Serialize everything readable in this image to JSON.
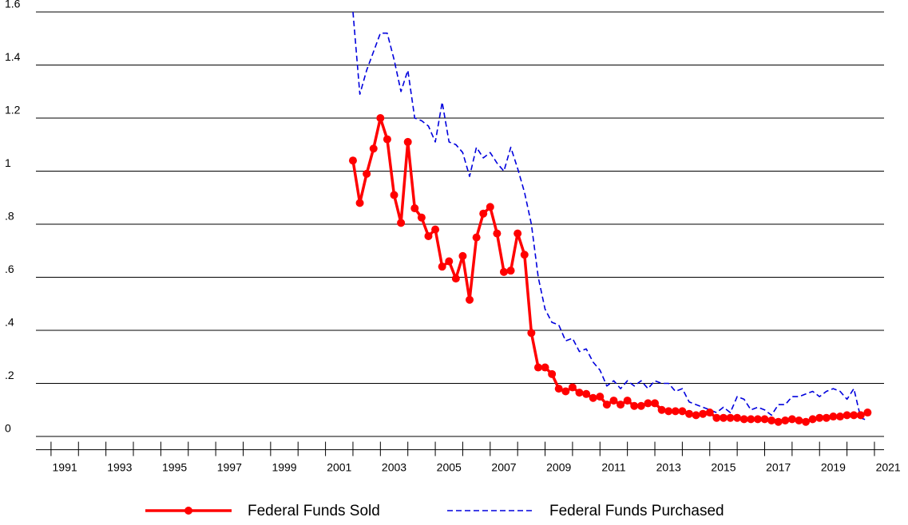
{
  "chart_data": {
    "type": "line",
    "x": [
      2002,
      2002.25,
      2002.5,
      2002.75,
      2003,
      2003.25,
      2003.5,
      2003.75,
      2004,
      2004.25,
      2004.5,
      2004.75,
      2005,
      2005.25,
      2005.5,
      2005.75,
      2006,
      2006.25,
      2006.5,
      2006.75,
      2007,
      2007.25,
      2007.5,
      2007.75,
      2008,
      2008.25,
      2008.5,
      2008.75,
      2009,
      2009.25,
      2009.5,
      2009.75,
      2010,
      2010.25,
      2010.5,
      2010.75,
      2011,
      2011.25,
      2011.5,
      2011.75,
      2012,
      2012.25,
      2012.5,
      2012.75,
      2013,
      2013.25,
      2013.5,
      2013.75,
      2014,
      2014.25,
      2014.5,
      2014.75,
      2015,
      2015.25,
      2015.5,
      2015.75,
      2016,
      2016.25,
      2016.5,
      2016.75,
      2017,
      2017.25,
      2017.5,
      2017.75,
      2018,
      2018.25,
      2018.5,
      2018.75,
      2019,
      2019.25,
      2019.5,
      2019.75,
      2020,
      2020.25,
      2020.5,
      2020.75
    ],
    "series": [
      {
        "name": "Federal Funds Sold",
        "color": "#ff0000",
        "marker": true,
        "values": [
          1.04,
          0.88,
          0.99,
          1.085,
          1.2,
          1.12,
          0.91,
          0.805,
          1.11,
          0.86,
          0.825,
          0.755,
          0.78,
          0.64,
          0.66,
          0.595,
          0.68,
          0.515,
          0.75,
          0.84,
          0.865,
          0.765,
          0.62,
          0.625,
          0.765,
          0.685,
          0.39,
          0.26,
          0.26,
          0.235,
          0.18,
          0.17,
          0.185,
          0.165,
          0.16,
          0.145,
          0.15,
          0.12,
          0.135,
          0.12,
          0.135,
          0.115,
          0.115,
          0.125,
          0.125,
          0.1,
          0.095,
          0.095,
          0.095,
          0.085,
          0.08,
          0.085,
          0.09,
          0.07,
          0.07,
          0.07,
          0.07,
          0.065,
          0.065,
          0.065,
          0.065,
          0.06,
          0.055,
          0.06,
          0.065,
          0.06,
          0.055,
          0.065,
          0.07,
          0.07,
          0.075,
          0.075,
          0.08,
          0.08,
          0.08,
          0.09
        ]
      },
      {
        "name": "Federal Funds Purchased",
        "color": "#0000dd",
        "dashed": true,
        "values": [
          1.6,
          1.29,
          1.38,
          1.45,
          1.52,
          1.52,
          1.42,
          1.3,
          1.38,
          1.2,
          1.19,
          1.17,
          1.11,
          1.26,
          1.11,
          1.1,
          1.07,
          0.98,
          1.09,
          1.05,
          1.07,
          1.03,
          1.0,
          1.09,
          1.01,
          0.92,
          0.8,
          0.6,
          0.48,
          0.43,
          0.42,
          0.36,
          0.37,
          0.32,
          0.33,
          0.28,
          0.25,
          0.19,
          0.21,
          0.18,
          0.21,
          0.19,
          0.21,
          0.18,
          0.21,
          0.2,
          0.2,
          0.17,
          0.18,
          0.13,
          0.12,
          0.11,
          0.1,
          0.09,
          0.11,
          0.09,
          0.15,
          0.14,
          0.1,
          0.11,
          0.1,
          0.08,
          0.12,
          0.12,
          0.15,
          0.15,
          0.16,
          0.17,
          0.15,
          0.17,
          0.18,
          0.17,
          0.14,
          0.18,
          0.07,
          0.06
        ]
      }
    ],
    "xlim": [
      1990.45,
      2021.35
    ],
    "xticks": [
      {
        "value": 1991.5,
        "label": "1991"
      },
      {
        "value": 1993.5,
        "label": "1993"
      },
      {
        "value": 1995.5,
        "label": "1995"
      },
      {
        "value": 1997.5,
        "label": "1997"
      },
      {
        "value": 1999.5,
        "label": "1999"
      },
      {
        "value": 2001.5,
        "label": "2001"
      },
      {
        "value": 2003.5,
        "label": "2003"
      },
      {
        "value": 2005.5,
        "label": "2005"
      },
      {
        "value": 2007.5,
        "label": "2007"
      },
      {
        "value": 2009.5,
        "label": "2009"
      },
      {
        "value": 2011.5,
        "label": "2011"
      },
      {
        "value": 2013.5,
        "label": "2013"
      },
      {
        "value": 2015.5,
        "label": "2015"
      },
      {
        "value": 2017.5,
        "label": "2017"
      },
      {
        "value": 2019.5,
        "label": "2019"
      },
      {
        "value": 2021.5,
        "label": "2021"
      }
    ],
    "xminorticks": [
      1991,
      1992,
      1993,
      1994,
      1995,
      1996,
      1997,
      1998,
      1999,
      2000,
      2001,
      2002,
      2003,
      2004,
      2005,
      2006,
      2007,
      2008,
      2009,
      2010,
      2011,
      2012,
      2013,
      2014,
      2015,
      2016,
      2017,
      2018,
      2019,
      2020,
      2021
    ],
    "ylim": [
      -0.05,
      1.6
    ],
    "yticks": [
      0,
      {
        "value": 0.2,
        "label": ".2"
      },
      {
        "value": 0.4,
        "label": ".4"
      },
      {
        "value": 0.6,
        "label": ".6"
      },
      {
        "value": 0.8,
        "label": ".8"
      },
      1,
      {
        "value": 1.2,
        "label": "1.2"
      },
      {
        "value": 1.4,
        "label": "1.4"
      },
      {
        "value": 1.6,
        "label": "1.6"
      }
    ],
    "grid": true,
    "legend": "bottom"
  }
}
